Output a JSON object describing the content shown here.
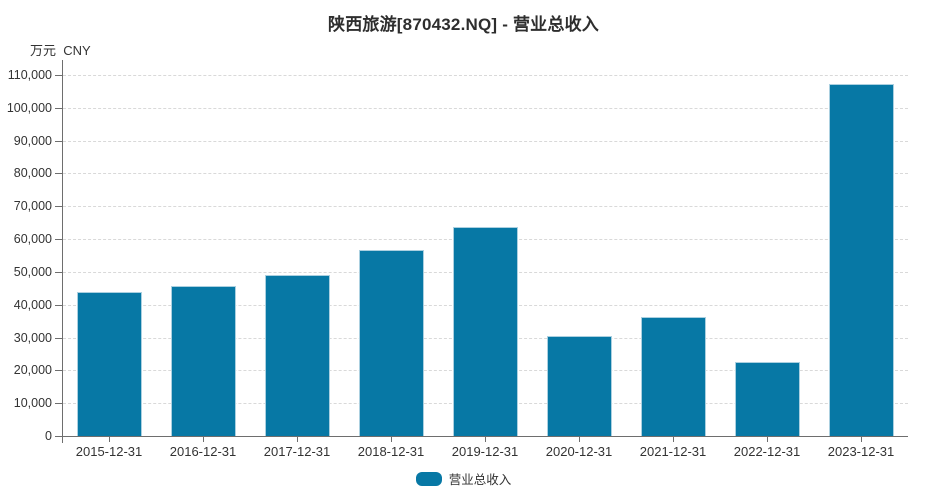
{
  "chart": {
    "title": "陕西旅游[870432.NQ] - 营业总收入",
    "unit_label": "万元  CNY",
    "legend_label": "营业总收入",
    "colors": {
      "bar": "#0778a5",
      "bar_border": "#abd0e0",
      "grid": "#d9d9d9",
      "axis": "#6e6e6e",
      "text": "#333333",
      "title": "#2e2e2e",
      "background": "#ffffff"
    }
  },
  "chart_data": {
    "type": "bar",
    "title": "陕西旅游[870432.NQ] - 营业总收入",
    "series_name": "营业总收入",
    "ylabel": "万元 CNY",
    "categories": [
      "2015-12-31",
      "2016-12-31",
      "2017-12-31",
      "2018-12-31",
      "2019-12-31",
      "2020-12-31",
      "2021-12-31",
      "2022-12-31",
      "2023-12-31"
    ],
    "values": [
      43800,
      45600,
      49000,
      56700,
      63700,
      30500,
      36300,
      22500,
      107200
    ],
    "ylim": [
      0,
      110000
    ],
    "ytick_step": 10000,
    "ytick_labels": [
      "0",
      "10,000",
      "20,000",
      "30,000",
      "40,000",
      "50,000",
      "60,000",
      "70,000",
      "80,000",
      "90,000",
      "100,000",
      "110,000"
    ],
    "grid": "horizontal-dashed",
    "legend_position": "bottom"
  }
}
